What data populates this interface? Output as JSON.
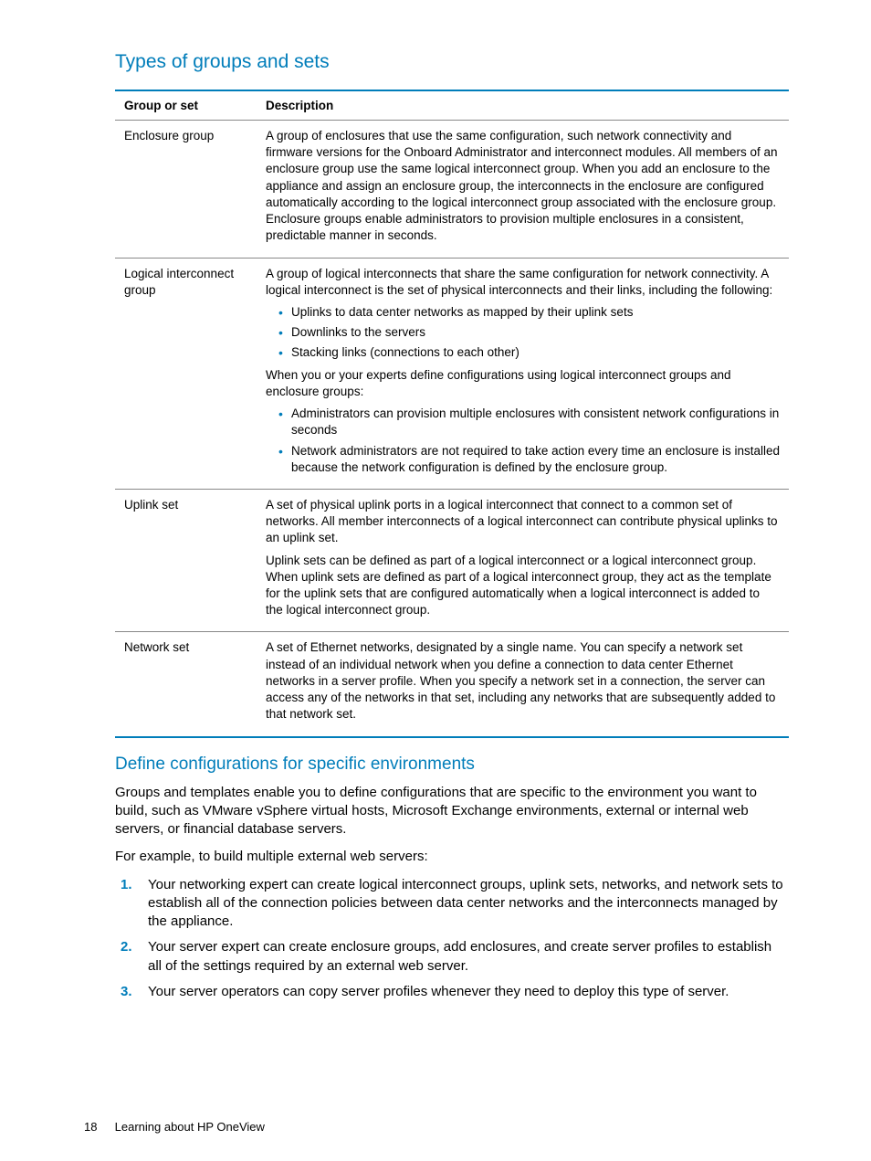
{
  "heading": "Types of groups and sets",
  "table": {
    "headers": [
      "Group or set",
      "Description"
    ],
    "rows": [
      {
        "name": "Enclosure group",
        "blocks": [
          {
            "type": "p",
            "text": "A group of enclosures that use the same configuration, such network connectivity and firmware versions for the Onboard Administrator and interconnect modules. All members of an enclosure group use the same logical interconnect group. When you add an enclosure to the appliance and assign an enclosure group, the interconnects in the enclosure are configured automatically according to the logical interconnect group associated with the enclosure group. Enclosure groups enable administrators to provision multiple enclosures in a consistent, predictable manner in seconds."
          }
        ]
      },
      {
        "name": "Logical interconnect group",
        "blocks": [
          {
            "type": "p",
            "text": "A group of logical interconnects that share the same configuration for network connectivity. A logical interconnect is the set of physical interconnects and their links, including the following:"
          },
          {
            "type": "ul",
            "items": [
              "Uplinks to data center networks as mapped by their uplink sets",
              "Downlinks to the servers",
              "Stacking links (connections to each other)"
            ]
          },
          {
            "type": "p",
            "text": "When you or your experts define configurations using logical interconnect groups and enclosure groups:"
          },
          {
            "type": "ul",
            "items": [
              "Administrators can provision multiple enclosures with consistent network configurations in seconds",
              "Network administrators are not required to take action every time an enclosure is installed because the network configuration is defined by the enclosure group."
            ]
          }
        ]
      },
      {
        "name": "Uplink set",
        "blocks": [
          {
            "type": "p",
            "text": "A set of physical uplink ports in a logical interconnect that connect to a common set of networks. All member interconnects of a logical interconnect can contribute physical uplinks to an uplink set."
          },
          {
            "type": "p",
            "text": "Uplink sets can be defined as part of a logical interconnect or a logical interconnect group. When uplink sets are defined as part of a logical interconnect group, they act as the template for the uplink sets that are configured automatically when a logical interconnect is added to the logical interconnect group."
          }
        ]
      },
      {
        "name": "Network set",
        "blocks": [
          {
            "type": "p",
            "text": "A set of Ethernet networks, designated by a single name. You can specify a network set instead of an individual network when you define a connection to data center Ethernet networks in a server profile. When you specify a network set in a connection, the server can access any of the networks in that set, including any networks that are subsequently added to that network set."
          }
        ]
      }
    ]
  },
  "subheading": "Define configurations for specific environments",
  "para1": "Groups and templates enable you to define configurations that are specific to the environment you want to build, such as VMware vSphere virtual hosts, Microsoft Exchange environments, external or internal web servers, or financial database servers.",
  "para2": "For example, to build multiple external web servers:",
  "steps": [
    {
      "num": "1.",
      "text": "Your networking expert can create logical interconnect groups, uplink sets, networks, and network sets to establish all of the connection policies between data center networks and the interconnects managed by the appliance."
    },
    {
      "num": "2.",
      "text": "Your server expert can create enclosure groups, add enclosures, and create server profiles to establish all of the settings required by an external web server."
    },
    {
      "num": "3.",
      "text": "Your server operators can copy server profiles whenever they need to deploy this type of server."
    }
  ],
  "footer": {
    "page": "18",
    "title": "Learning about HP OneView"
  }
}
